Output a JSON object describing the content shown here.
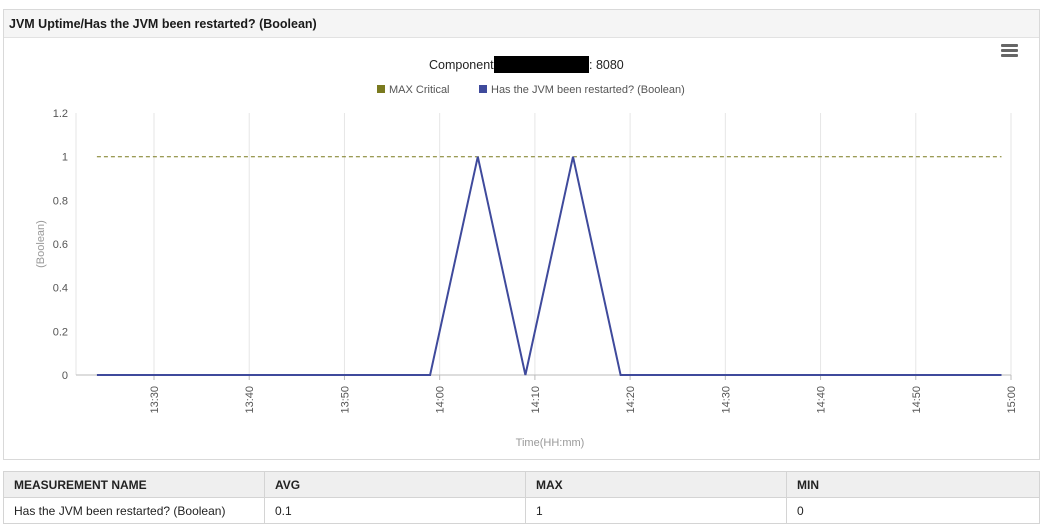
{
  "panel": {
    "title": "JVM Uptime/Has the JVM been restarted? (Boolean)",
    "menu_icon": "hamburger-menu-icon"
  },
  "chart_data": {
    "type": "line",
    "title_prefix": "Component:",
    "title_suffix": ": 8080",
    "title_redacted": true,
    "xlabel": "Time(HH:mm)",
    "ylabel": "(Boolean)",
    "ylim": [
      0,
      1.2
    ],
    "yticks": [
      "0",
      "0.2",
      "0.4",
      "0.6",
      "0.8",
      "1",
      "1.2"
    ],
    "xticks": [
      "13:30",
      "13:40",
      "13:50",
      "14:00",
      "14:10",
      "14:20",
      "14:30",
      "14:40",
      "14:50",
      "15:00"
    ],
    "grid": true,
    "legend_position": "top-center",
    "series": [
      {
        "name": "MAX Critical",
        "color": "#7a7a1f",
        "style": "dashed",
        "x": [
          "13:24",
          "14:59"
        ],
        "y": [
          1,
          1
        ]
      },
      {
        "name": "Has the JVM been restarted? (Boolean)",
        "color": "#3f4a9c",
        "style": "solid",
        "x": [
          "13:24",
          "13:59",
          "14:04",
          "14:09",
          "14:14",
          "14:19",
          "14:59"
        ],
        "y": [
          0,
          0,
          1,
          0,
          1,
          0,
          0
        ]
      }
    ]
  },
  "table": {
    "headers": [
      "MEASUREMENT NAME",
      "AVG",
      "MAX",
      "MIN"
    ],
    "rows": [
      [
        "Has the JVM been restarted? (Boolean)",
        "0.1",
        "1",
        "0"
      ]
    ]
  }
}
